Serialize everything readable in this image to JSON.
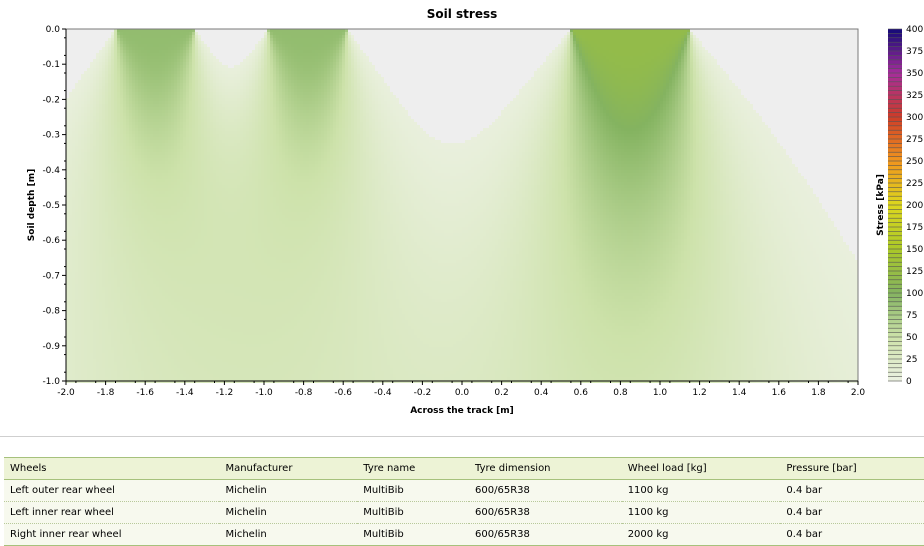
{
  "chart_data": {
    "type": "contour",
    "title": "Soil stress",
    "xlabel": "Across the track [m]",
    "ylabel": "Soil depth [m]",
    "xlim": [
      -2.0,
      2.0
    ],
    "ylim": [
      -1.0,
      0.0
    ],
    "x_ticks": [
      "-2.0",
      "-1.8",
      "-1.6",
      "-1.4",
      "-1.2",
      "-1.0",
      "-0.8",
      "-0.6",
      "-0.4",
      "-0.2",
      "0.0",
      "0.2",
      "0.4",
      "0.6",
      "0.8",
      "1.0",
      "1.2",
      "1.4",
      "1.6",
      "1.8",
      "2.0"
    ],
    "y_ticks": [
      "0.0",
      "-0.1",
      "-0.2",
      "-0.3",
      "-0.4",
      "-0.5",
      "-0.6",
      "-0.7",
      "-0.8",
      "-0.9",
      "-1.0"
    ],
    "colorbar": {
      "label": "Stress [kPa]",
      "ticks": [
        "400",
        "375",
        "350",
        "325",
        "300",
        "275",
        "250",
        "225",
        "200",
        "175",
        "150",
        "125",
        "100",
        "75",
        "50",
        "25",
        "0"
      ]
    },
    "stress_sources": [
      {
        "name": "Left outer rear wheel",
        "x_min": -1.75,
        "x_max": -1.35,
        "max_stress_kPa": 90
      },
      {
        "name": "Left inner rear wheel",
        "x_min": -0.98,
        "x_max": -0.58,
        "max_stress_kPa": 90
      },
      {
        "name": "Right inner rear wheel",
        "x_min": 0.55,
        "x_max": 1.15,
        "max_stress_kPa": 120
      }
    ]
  },
  "table": {
    "headers": [
      "Wheels",
      "Manufacturer",
      "Tyre name",
      "Tyre dimension",
      "Wheel load [kg]",
      "Pressure [bar]"
    ],
    "rows": [
      [
        "Left outer rear wheel",
        "Michelin",
        "MultiBib",
        "600/65R38",
        "1100 kg",
        "0.4 bar"
      ],
      [
        "Left inner rear wheel",
        "Michelin",
        "MultiBib",
        "600/65R38",
        "1100 kg",
        "0.4 bar"
      ],
      [
        "Right inner rear wheel",
        "Michelin",
        "MultiBib",
        "600/65R38",
        "2000 kg",
        "0.4 bar"
      ]
    ]
  }
}
